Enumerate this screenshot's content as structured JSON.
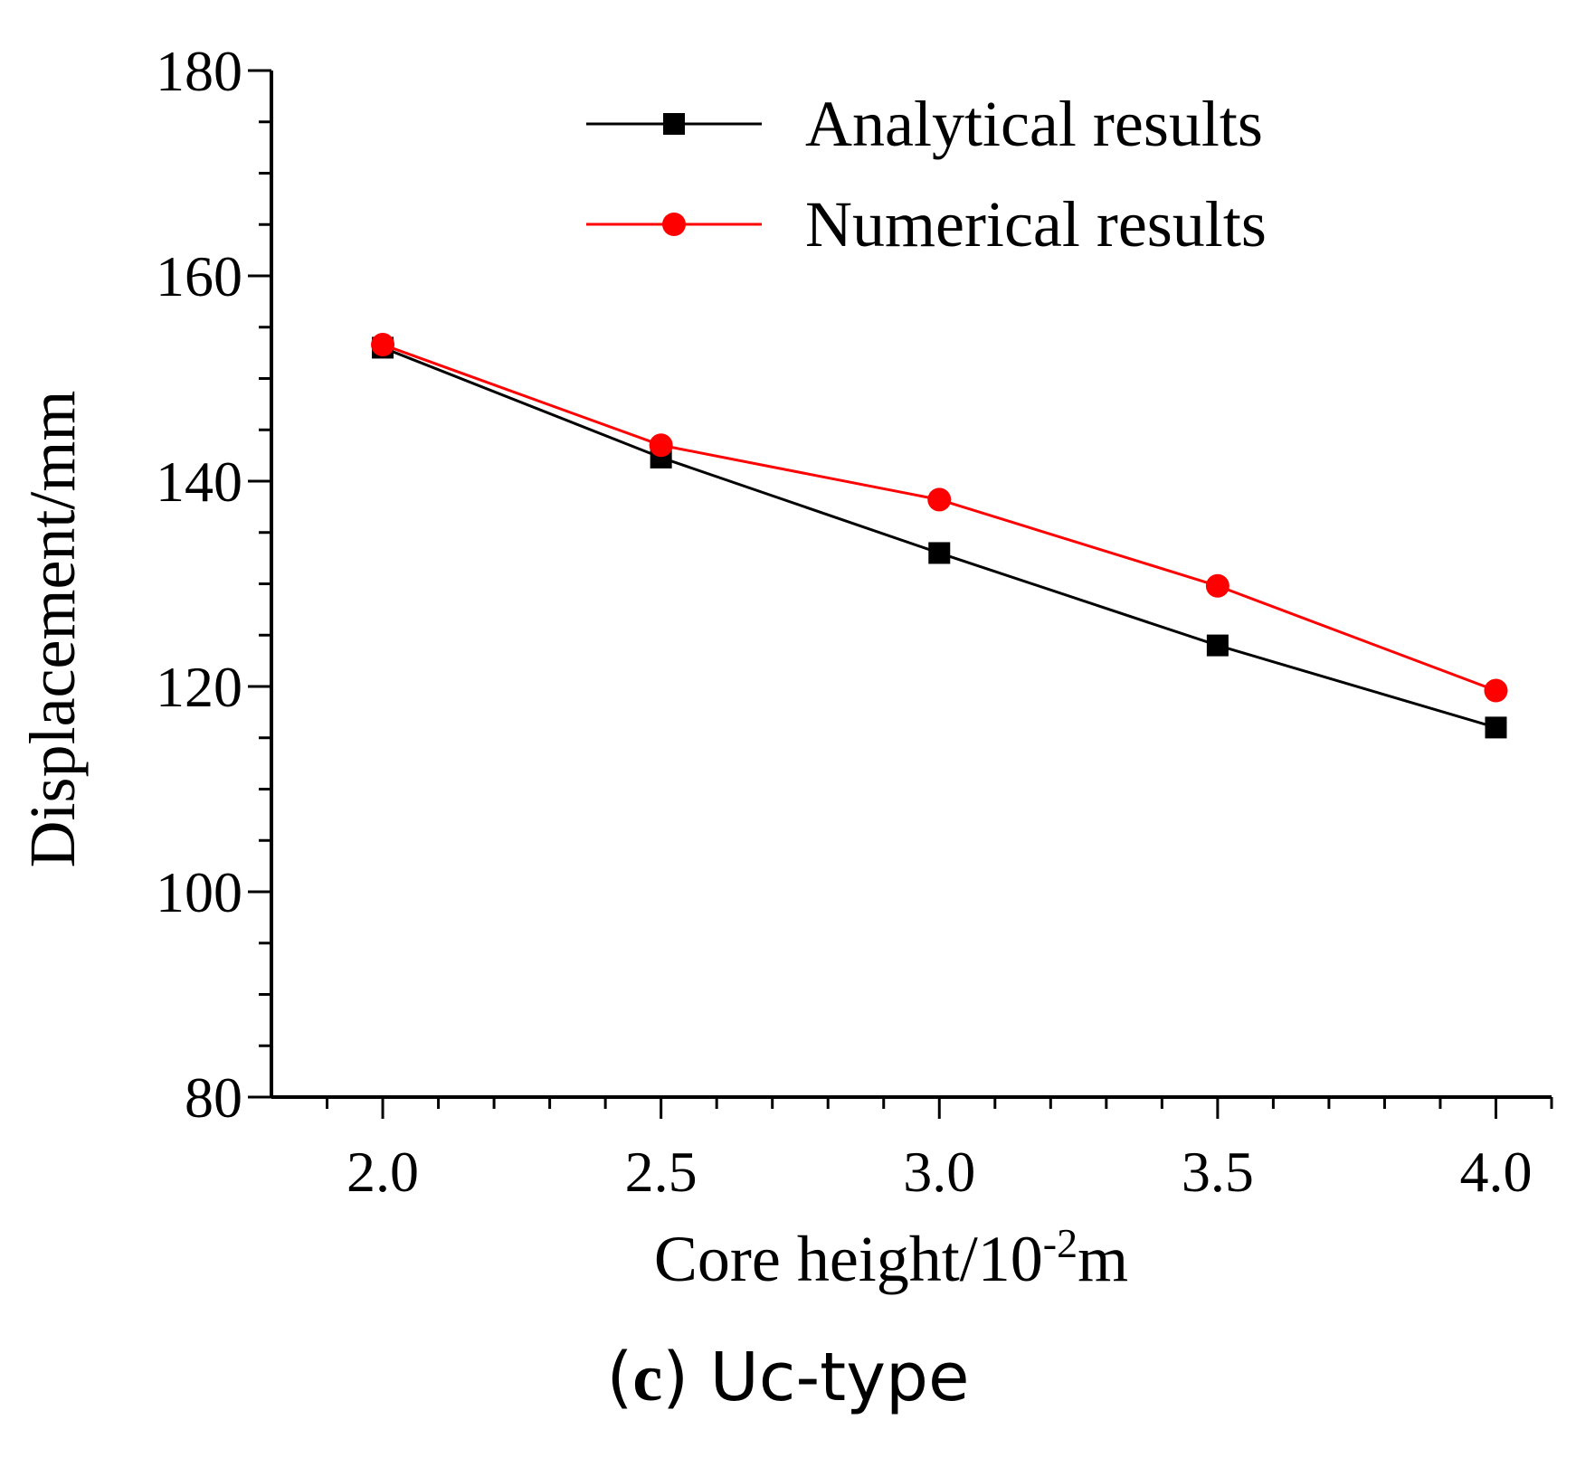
{
  "chart_data": {
    "type": "line",
    "title": "",
    "xlabel_main": "Core height/10",
    "xlabel_sup": "-2",
    "xlabel_unit": "m",
    "ylabel": "Displacement/mm",
    "x": [
      2.0,
      2.5,
      3.0,
      3.5,
      4.0
    ],
    "xlim": [
      1.8,
      4.1
    ],
    "ylim": [
      80,
      180
    ],
    "xticks": [
      "2.0",
      "2.5",
      "3.0",
      "3.5",
      "4.0"
    ],
    "xtick_values": [
      2.0,
      2.5,
      3.0,
      3.5,
      4.0
    ],
    "yticks": [
      "80",
      "100",
      "120",
      "140",
      "160",
      "180"
    ],
    "ytick_values": [
      80,
      100,
      120,
      140,
      160,
      180
    ],
    "series": [
      {
        "name": "Analytical results",
        "marker": "square",
        "color": "#000000",
        "values": [
          153.0,
          142.3,
          133.0,
          124.0,
          116.0
        ]
      },
      {
        "name": "Numerical results",
        "marker": "circle",
        "color": "#ff0000",
        "values": [
          153.3,
          143.5,
          138.2,
          129.8,
          119.6
        ]
      }
    ],
    "legend_position": "top-right",
    "grid": false
  },
  "caption": {
    "open": "(",
    "letter": "c",
    "close": ")",
    "text": " Uc-type"
  }
}
